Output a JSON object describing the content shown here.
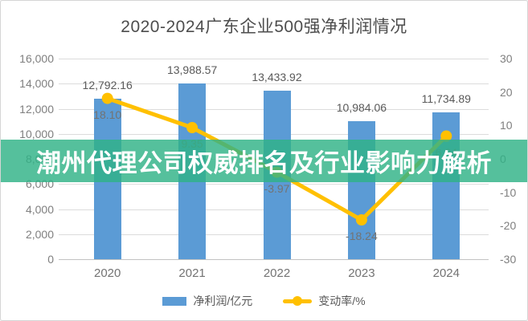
{
  "title": "2020-2024广东企业500强净利润情况",
  "overlay_banner": {
    "text": "潮州代理公司权威排名及行业影响力解析",
    "background_color": "#2FB286",
    "opacity": 0.82,
    "text_color": "#FFFFFF"
  },
  "chart_data": {
    "type": "bar",
    "subtype": "bar-line-combo",
    "title": "2020-2024广东企业500强净利润情况",
    "categories": [
      "2020",
      "2021",
      "2022",
      "2023",
      "2024"
    ],
    "series": [
      {
        "name": "净利润/亿元",
        "type": "bar",
        "axis": "left",
        "color": "#5B9BD5",
        "values": [
          12792.16,
          13988.57,
          13433.92,
          10984.06,
          11734.89
        ],
        "labels": [
          "12,792.16",
          "13,988.57",
          "13,433.92",
          "10,984.06",
          "11,734.89"
        ]
      },
      {
        "name": "变动率/%",
        "type": "line",
        "axis": "right",
        "color": "#FFC000",
        "values": [
          18.1,
          9.35,
          -3.97,
          -18.24,
          6.84
        ],
        "labels": [
          "18.10",
          "9.35",
          "-3.97",
          "-18.24",
          "6.84"
        ]
      }
    ],
    "left_axis": {
      "min": 0,
      "max": 16000,
      "ticks_top_to_bottom": [
        "16,000",
        "14,000",
        "12,000",
        "10,000",
        "8,000",
        "6,000",
        "4,000",
        "2,000",
        "0"
      ]
    },
    "right_axis": {
      "min": -30,
      "max": 30,
      "ticks_top_to_bottom": [
        "30",
        "20",
        "10",
        "0",
        "-10",
        "-20",
        "-30"
      ]
    },
    "grid": true,
    "legend_position": "bottom",
    "grid_color": "#DCDCDC"
  }
}
